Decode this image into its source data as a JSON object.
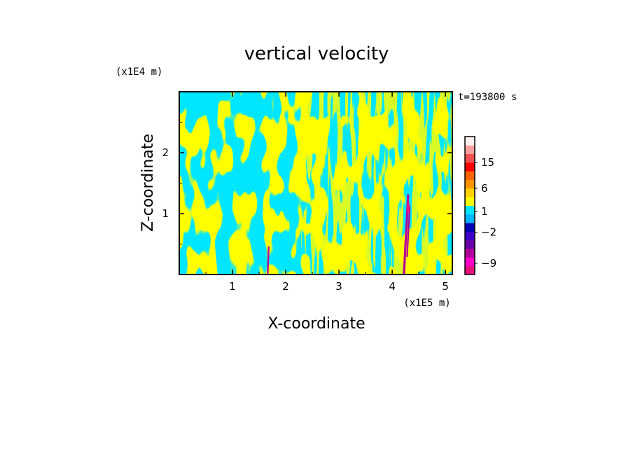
{
  "chart_data": {
    "type": "heatmap",
    "title": "vertical velocity",
    "xlabel": "X-coordinate",
    "ylabel": "Z-coordinate",
    "x_scale_label": "(x1E5 m)",
    "y_scale_label": "(x1E4 m)",
    "time_label": "t=193800 s",
    "xlim": [
      0,
      5.13
    ],
    "ylim": [
      0,
      3.0
    ],
    "x_ticks": [
      "1",
      "2",
      "3",
      "4",
      "5"
    ],
    "y_ticks": [
      "1",
      "2"
    ],
    "colorbar": {
      "tick_labels": [
        "15",
        "6",
        "1",
        "−2",
        "−9"
      ],
      "colors": [
        "#e4147e",
        "#ff00c8",
        "#b4009a",
        "#6a00a8",
        "#3c00c8",
        "#0000b4",
        "#00b4ff",
        "#00e6ff",
        "#ffff00",
        "#ffd200",
        "#ff9600",
        "#ff6400",
        "#ff0000",
        "#f05050",
        "#f7a0a0",
        "#fff0f0"
      ]
    },
    "dominant_colors": {
      "upward": "#ffff00",
      "downward": "#00e6ff",
      "strong_core": "#b4009a"
    }
  }
}
